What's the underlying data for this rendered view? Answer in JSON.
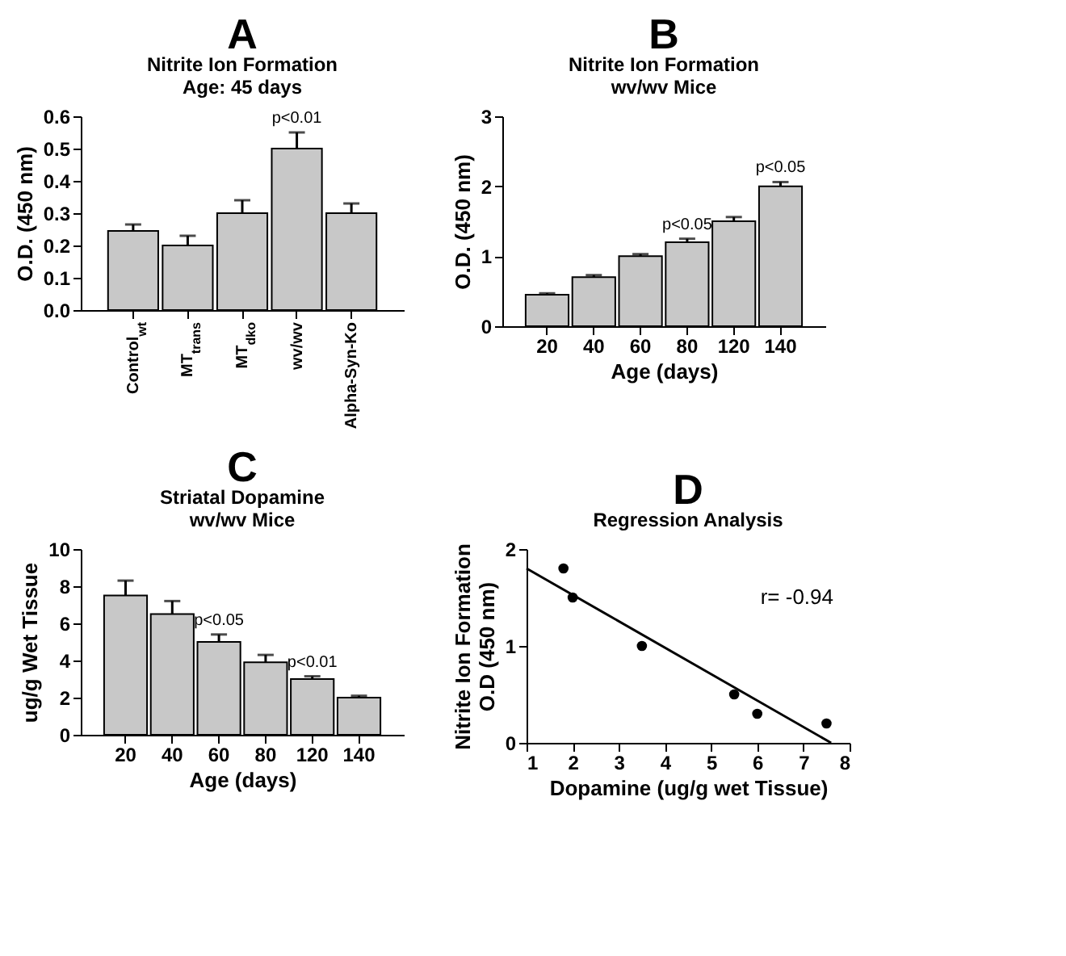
{
  "chart_data": [
    {
      "type": "bar",
      "title": "Nitrite Ion Formation",
      "subtitle": "Age: 45 days",
      "ylabel": "O.D. (450 nm)",
      "categories": [
        "Control$_{wt}$",
        "MT$_{trans}$",
        "MT$_{dko}$",
        "wv/wv",
        "Alpha-Syn-Ko"
      ],
      "values": [
        0.245,
        0.2,
        0.3,
        0.5,
        0.3
      ],
      "errors": [
        [
          0.245,
          0.265
        ],
        [
          0.2,
          0.23
        ],
        [
          0.3,
          0.34
        ],
        [
          0.5,
          0.55
        ],
        [
          0.3,
          0.33
        ]
      ],
      "color": "#c8c8c8",
      "ylim": [
        0,
        0.6
      ],
      "yticks": [
        {
          "value": 0,
          "label": "0.0"
        },
        0.1,
        0.2,
        0.3,
        0.4,
        0.5,
        0.6
      ],
      "annotations": [
        "A",
        {
          "text": "p<0.01",
          "x": "wv/wv",
          "y": 0.5
        }
      ]
    },
    {
      "type": "bar",
      "title": "Nitrite Ion Formation",
      "subtitle": "wv/wv Mice",
      "xlabel": "Age (days)",
      "ylabel": "O.D. (450 nm)",
      "categories": [
        "20",
        "40",
        "60",
        "80",
        "120",
        "140"
      ],
      "values": [
        0.45,
        0.7,
        1.0,
        1.2,
        1.5,
        2.0
      ],
      "errors": [
        [
          0.45,
          0.47
        ],
        [
          0.7,
          0.73
        ],
        [
          1.0,
          1.03
        ],
        [
          1.2,
          1.25
        ],
        [
          1.5,
          1.56
        ],
        [
          2.0,
          2.06
        ]
      ],
      "color": "#c8c8c8",
      "ylim": [
        0,
        3
      ],
      "yticks": [
        0,
        1,
        2,
        3
      ],
      "annotations": [
        "B",
        {
          "text": "p<0.05",
          "x": "80",
          "y": 1.2
        },
        {
          "text": "p<0.05",
          "x": "140",
          "y": 2.0
        }
      ]
    },
    {
      "type": "bar",
      "title": "Striatal Dopamine",
      "subtitle": "wv/wv Mice",
      "xlabel": "Age (days)",
      "ylabel": "ug/g Wet Tissue",
      "categories": [
        "20",
        "40",
        "60",
        "80",
        "120",
        "140"
      ],
      "values": [
        7.5,
        6.5,
        5.0,
        3.9,
        3.0,
        2.0
      ],
      "errors": [
        [
          7.5,
          8.3
        ],
        [
          6.5,
          7.2
        ],
        [
          5.0,
          5.4
        ],
        [
          3.9,
          4.3
        ],
        [
          3.0,
          3.15
        ],
        [
          2.0,
          2.1
        ]
      ],
      "color": "#c8c8c8",
      "ylim": [
        0,
        10
      ],
      "yticks": [
        0,
        2,
        4,
        6,
        8,
        10
      ],
      "annotations": [
        "C",
        {
          "text": "p<0.05",
          "x": "60",
          "y": 5.0
        },
        {
          "text": "p<0.01",
          "x": "120",
          "y": 3.0
        }
      ]
    },
    {
      "type": "scatter",
      "title": "Regression Analysis",
      "xlabel": "Dopamine (ug/g wet Tissue)",
      "ylabel": "Nitrite Ion Formation\nO.D (450 nm)",
      "series": [
        {
          "type": "scatter",
          "color": "#000000",
          "marker": "circle",
          "x": [
            1.8,
            2.0,
            3.5,
            5.5,
            6.0,
            7.5
          ],
          "values": [
            1.8,
            1.5,
            1.0,
            0.5,
            0.3,
            0.2
          ]
        },
        {
          "type": "line",
          "color": "#000000",
          "x": [
            1.0,
            7.6
          ],
          "values": [
            1.8,
            0
          ]
        }
      ],
      "xlim": [
        1,
        8
      ],
      "xticks": [
        1,
        2,
        3,
        4,
        5,
        6,
        7,
        8
      ],
      "ylim": [
        0,
        2
      ],
      "yticks": [
        0,
        1,
        2
      ],
      "annotations": [
        "D",
        "r= -0.94"
      ]
    }
  ]
}
